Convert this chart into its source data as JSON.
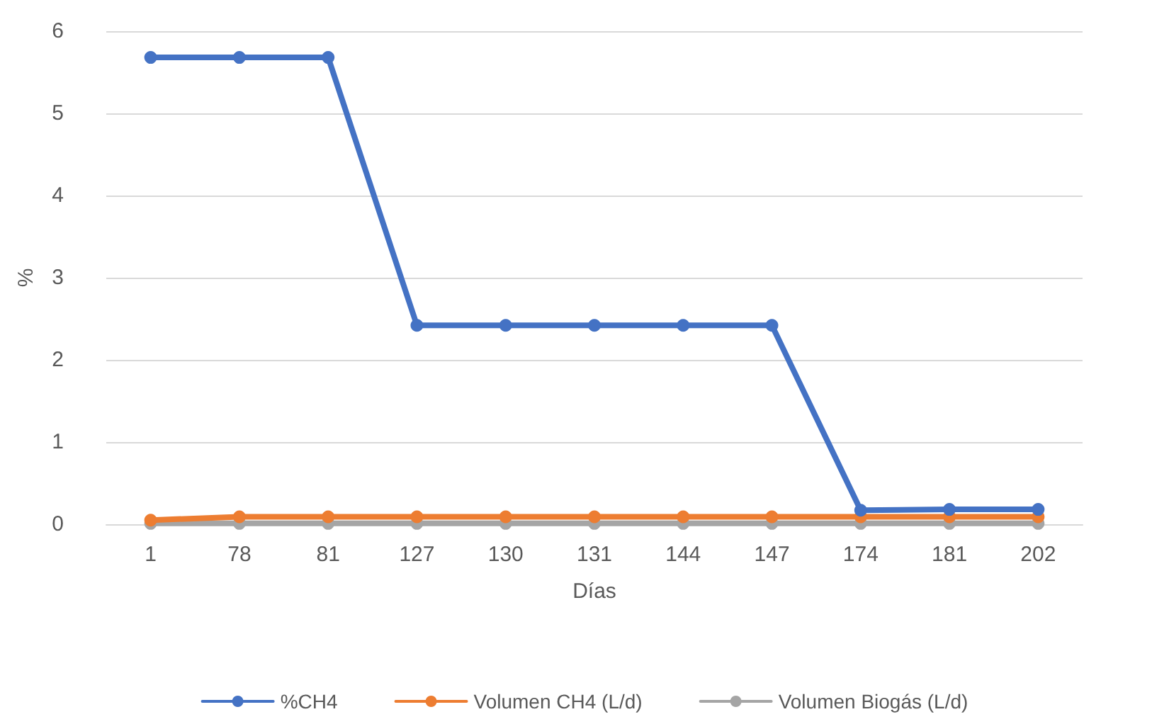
{
  "chart_data": {
    "type": "line",
    "xlabel": "Días",
    "ylabel": "%",
    "categories": [
      "1",
      "78",
      "81",
      "127",
      "130",
      "131",
      "144",
      "147",
      "174",
      "181",
      "202"
    ],
    "series": [
      {
        "name": "%CH4",
        "color": "#4472c4",
        "values": [
          5.68,
          5.68,
          5.68,
          2.42,
          2.42,
          2.42,
          2.42,
          2.42,
          0.17,
          0.18,
          0.18
        ]
      },
      {
        "name": "Volumen CH4 (L/d)",
        "color": "#ed7d31",
        "values": [
          0.05,
          0.09,
          0.09,
          0.09,
          0.09,
          0.09,
          0.09,
          0.09,
          0.09,
          0.09,
          0.09
        ]
      },
      {
        "name": "Volumen Biogás (L/d)",
        "color": "#a5a5a5",
        "values": [
          0.01,
          0.01,
          0.01,
          0.01,
          0.01,
          0.01,
          0.01,
          0.01,
          0.01,
          0.01,
          0.01
        ]
      }
    ],
    "ylim": [
      0,
      6
    ],
    "yticks": [
      0,
      1,
      2,
      3,
      4,
      5,
      6
    ],
    "grid": "y",
    "legend": "bottom",
    "marker": "circle",
    "line_style": "solid"
  }
}
